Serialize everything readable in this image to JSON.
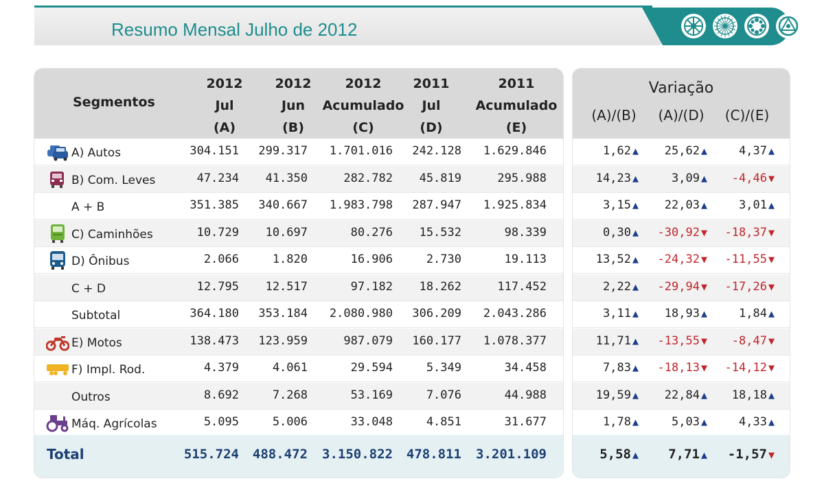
{
  "header": {
    "title": "Resumo Mensal Julho de 2012"
  },
  "table": {
    "segments_label": "Segmentos",
    "columns": [
      {
        "l1": "2012",
        "l2": "Jul",
        "l3": "(A)"
      },
      {
        "l1": "2012",
        "l2": "Jun",
        "l3": "(B)"
      },
      {
        "l1": "2012",
        "l2": "Acumulado",
        "l3": "(C)"
      },
      {
        "l1": "2011",
        "l2": "Jul",
        "l3": "(D)"
      },
      {
        "l1": "2011",
        "l2": "Acumulado",
        "l3": "(E)"
      }
    ],
    "variation_title": "Variação",
    "variation_columns": [
      "(A)/(B)",
      "(A)/(D)",
      "(C)/(E)"
    ],
    "rows": [
      {
        "label": "A) Autos",
        "icon": "car-icon",
        "values": [
          "304.151",
          "299.317",
          "1.701.016",
          "242.128",
          "1.629.846"
        ],
        "variation": [
          {
            "v": "1,62",
            "dir": "up"
          },
          {
            "v": "25,62",
            "dir": "up"
          },
          {
            "v": "4,37",
            "dir": "up"
          }
        ]
      },
      {
        "label": "B) Com. Leves",
        "icon": "light-truck-icon",
        "values": [
          "47.234",
          "41.350",
          "282.782",
          "45.819",
          "295.988"
        ],
        "variation": [
          {
            "v": "14,23",
            "dir": "up"
          },
          {
            "v": "3,09",
            "dir": "up"
          },
          {
            "v": "-4,46",
            "dir": "down"
          }
        ]
      },
      {
        "label": "A + B",
        "icon": "",
        "values": [
          "351.385",
          "340.667",
          "1.983.798",
          "287.947",
          "1.925.834"
        ],
        "variation": [
          {
            "v": "3,15",
            "dir": "up"
          },
          {
            "v": "22,03",
            "dir": "up"
          },
          {
            "v": "3,01",
            "dir": "up"
          }
        ]
      },
      {
        "label": "C) Caminhões",
        "icon": "truck-icon",
        "values": [
          "10.729",
          "10.697",
          "80.276",
          "15.532",
          "98.339"
        ],
        "variation": [
          {
            "v": "0,30",
            "dir": "up"
          },
          {
            "v": "-30,92",
            "dir": "down"
          },
          {
            "v": "-18,37",
            "dir": "down"
          }
        ]
      },
      {
        "label": "D) Ônibus",
        "icon": "bus-icon",
        "values": [
          "2.066",
          "1.820",
          "16.906",
          "2.730",
          "19.113"
        ],
        "variation": [
          {
            "v": "13,52",
            "dir": "up"
          },
          {
            "v": "-24,32",
            "dir": "down"
          },
          {
            "v": "-11,55",
            "dir": "down"
          }
        ]
      },
      {
        "label": "C + D",
        "icon": "",
        "values": [
          "12.795",
          "12.517",
          "97.182",
          "18.262",
          "117.452"
        ],
        "variation": [
          {
            "v": "2,22",
            "dir": "up"
          },
          {
            "v": "-29,94",
            "dir": "down"
          },
          {
            "v": "-17,26",
            "dir": "down"
          }
        ]
      },
      {
        "label": "Subtotal",
        "icon": "",
        "values": [
          "364.180",
          "353.184",
          "2.080.980",
          "306.209",
          "2.043.286"
        ],
        "variation": [
          {
            "v": "3,11",
            "dir": "up"
          },
          {
            "v": "18,93",
            "dir": "up"
          },
          {
            "v": "1,84",
            "dir": "up"
          }
        ]
      },
      {
        "label": "E) Motos",
        "icon": "motorcycle-icon",
        "values": [
          "138.473",
          "123.959",
          "987.079",
          "160.177",
          "1.078.377"
        ],
        "variation": [
          {
            "v": "11,71",
            "dir": "up"
          },
          {
            "v": "-13,55",
            "dir": "down"
          },
          {
            "v": "-8,47",
            "dir": "down"
          }
        ]
      },
      {
        "label": "F) Impl. Rod.",
        "icon": "trailer-icon",
        "values": [
          "4.379",
          "4.061",
          "29.594",
          "5.349",
          "34.458"
        ],
        "variation": [
          {
            "v": "7,83",
            "dir": "up"
          },
          {
            "v": "-18,13",
            "dir": "down"
          },
          {
            "v": "-14,12",
            "dir": "down"
          }
        ]
      },
      {
        "label": "Outros",
        "icon": "",
        "values": [
          "8.692",
          "7.268",
          "53.169",
          "7.076",
          "44.988"
        ],
        "variation": [
          {
            "v": "19,59",
            "dir": "up"
          },
          {
            "v": "22,84",
            "dir": "up"
          },
          {
            "v": "18,18",
            "dir": "up"
          }
        ]
      },
      {
        "label": "Máq. Agrícolas",
        "icon": "tractor-icon",
        "values": [
          "5.095",
          "5.006",
          "33.048",
          "4.851",
          "31.677"
        ],
        "variation": [
          {
            "v": "1,78",
            "dir": "up"
          },
          {
            "v": "5,03",
            "dir": "up"
          },
          {
            "v": "4,33",
            "dir": "up"
          }
        ]
      }
    ],
    "total": {
      "label": "Total",
      "values": [
        "515.724",
        "488.472",
        "3.150.822",
        "478.811",
        "3.201.109"
      ],
      "variation": [
        {
          "v": "5,58",
          "dir": "up"
        },
        {
          "v": "7,71",
          "dir": "up"
        },
        {
          "v": "-1,57",
          "dir": "down"
        }
      ]
    }
  },
  "colors": {
    "brand_teal": "#1f8d8d",
    "total_blue": "#1d3f73",
    "arrow_up": "#1d3f8a",
    "negative_red": "#c0262c"
  }
}
